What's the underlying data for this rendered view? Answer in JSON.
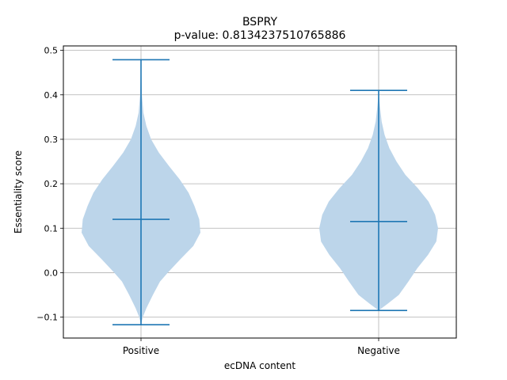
{
  "chart_data": {
    "type": "violin",
    "title": "BSPRY",
    "subtitle": "p-value: 0.8134237510765886",
    "xlabel": "ecDNA content",
    "ylabel": "Essentiality score",
    "categories": [
      "Positive",
      "Negative"
    ],
    "ylim": [
      -0.147,
      0.51
    ],
    "yticks": [
      -0.1,
      0.0,
      0.1,
      0.2,
      0.3,
      0.4,
      0.5
    ],
    "ytick_labels": [
      "−0.1",
      "0.0",
      "0.1",
      "0.2",
      "0.3",
      "0.4",
      "0.5"
    ],
    "grid": true,
    "colors": {
      "body": "#bcd5ea",
      "line": "#1f77b4"
    },
    "series": [
      {
        "category": "Positive",
        "min": -0.117,
        "max": 0.479,
        "median": 0.12,
        "density": [
          [
            -0.117,
            0.0
          ],
          [
            -0.1,
            0.03
          ],
          [
            -0.08,
            0.09
          ],
          [
            -0.05,
            0.2
          ],
          [
            -0.02,
            0.32
          ],
          [
            0.0,
            0.45
          ],
          [
            0.03,
            0.66
          ],
          [
            0.06,
            0.88
          ],
          [
            0.09,
            1.0
          ],
          [
            0.12,
            0.98
          ],
          [
            0.15,
            0.9
          ],
          [
            0.18,
            0.8
          ],
          [
            0.21,
            0.65
          ],
          [
            0.24,
            0.47
          ],
          [
            0.27,
            0.3
          ],
          [
            0.3,
            0.17
          ],
          [
            0.33,
            0.09
          ],
          [
            0.36,
            0.04
          ],
          [
            0.4,
            0.015
          ],
          [
            0.44,
            0.008
          ],
          [
            0.479,
            0.0
          ]
        ]
      },
      {
        "category": "Negative",
        "min": -0.085,
        "max": 0.41,
        "median": 0.115,
        "density": [
          [
            -0.085,
            0.0
          ],
          [
            -0.07,
            0.15
          ],
          [
            -0.05,
            0.34
          ],
          [
            -0.02,
            0.5
          ],
          [
            0.01,
            0.65
          ],
          [
            0.04,
            0.83
          ],
          [
            0.07,
            0.97
          ],
          [
            0.1,
            1.0
          ],
          [
            0.13,
            0.95
          ],
          [
            0.16,
            0.84
          ],
          [
            0.19,
            0.66
          ],
          [
            0.22,
            0.45
          ],
          [
            0.25,
            0.3
          ],
          [
            0.28,
            0.18
          ],
          [
            0.31,
            0.1
          ],
          [
            0.34,
            0.05
          ],
          [
            0.37,
            0.025
          ],
          [
            0.39,
            0.01
          ],
          [
            0.41,
            0.0
          ]
        ]
      }
    ]
  }
}
